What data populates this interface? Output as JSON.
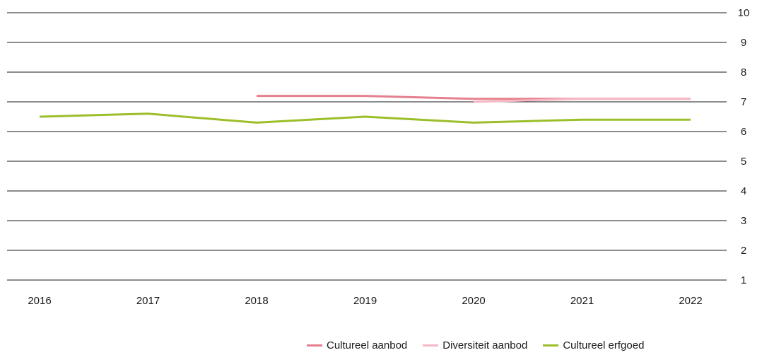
{
  "chart_data": {
    "type": "line",
    "title": "",
    "xlabel": "",
    "ylabel": "",
    "categories": [
      "2016",
      "2017",
      "2018",
      "2019",
      "2020",
      "2021",
      "2022"
    ],
    "ylim": [
      1,
      10
    ],
    "yticks": [
      1,
      2,
      3,
      4,
      5,
      6,
      7,
      8,
      9,
      10
    ],
    "y_axis_side": "right",
    "grid": true,
    "legend_position": "bottom-right",
    "series": [
      {
        "name": "Cultureel aanbod",
        "color": "#e5808e",
        "values": [
          null,
          null,
          7.2,
          7.2,
          7.1,
          7.1,
          7.1
        ]
      },
      {
        "name": "Diversiteit aanbod",
        "color": "#f5b8c4",
        "values": [
          null,
          null,
          null,
          null,
          7.0,
          7.1,
          7.1
        ]
      },
      {
        "name": "Cultureel erfgoed",
        "color": "#9bbf2a",
        "values": [
          6.5,
          6.6,
          6.3,
          6.5,
          6.3,
          6.4,
          6.4
        ]
      }
    ]
  }
}
